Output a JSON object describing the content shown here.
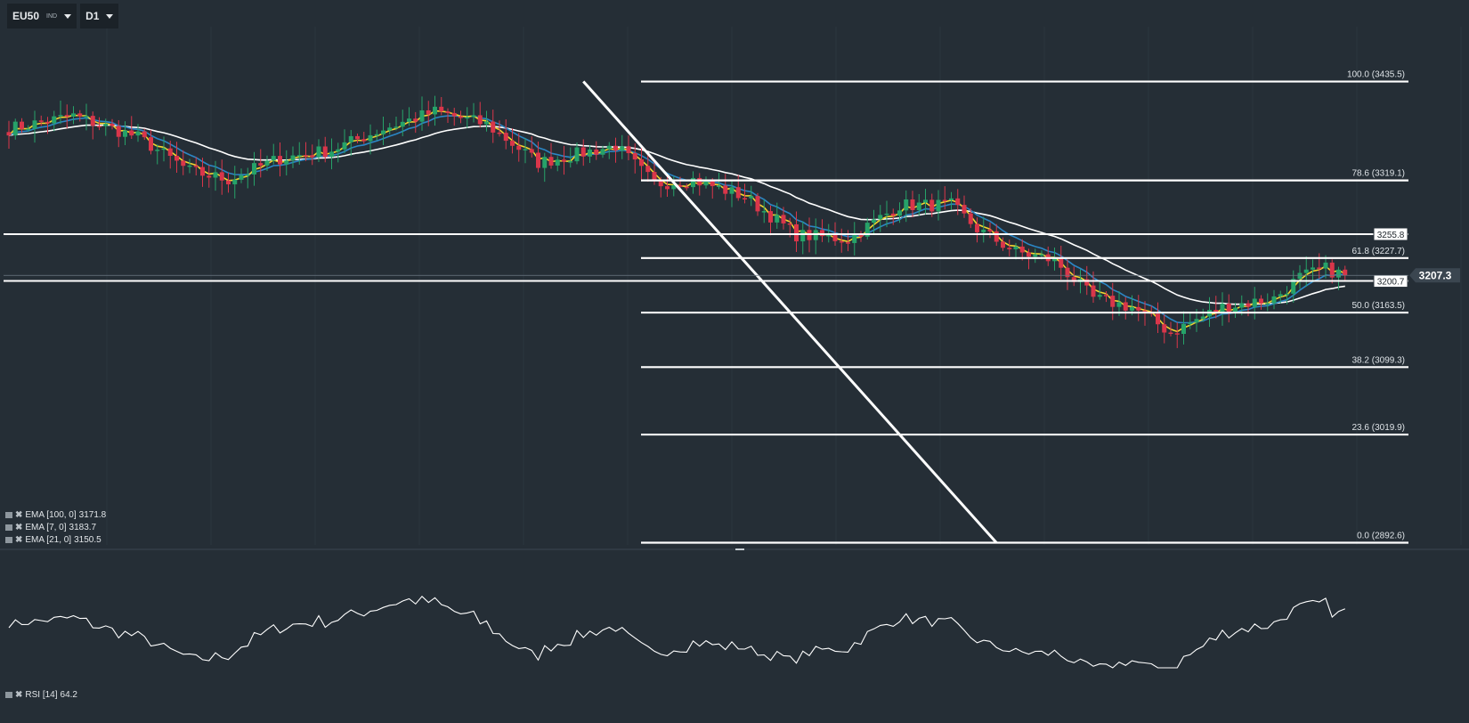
{
  "toolbar": {
    "symbol": "EU50",
    "symbol_sub": "IND",
    "timeframe": "D1"
  },
  "colors": {
    "background": "#252e36",
    "up": "#26a269",
    "down": "#d9364a",
    "ema100": "#ffffff",
    "ema7": "#f2d52e",
    "ema21": "#2b86c5",
    "fib": "#ffffff",
    "rsi": "#ffffff"
  },
  "price_tag": "3207.3",
  "indicators": [
    {
      "label": "EMA [100,  0]",
      "value": "3171.8"
    },
    {
      "label": "EMA [7,  0]",
      "value": "3183.7"
    },
    {
      "label": "EMA [21,  0]",
      "value": "3150.5"
    }
  ],
  "rsi": {
    "label": "RSI [14]",
    "value": "64.2"
  },
  "chart_data": {
    "type": "candlestick",
    "symbol": "EU50",
    "timeframe": "D1",
    "ylim": [
      2890,
      3500
    ],
    "current_price": 3207.3,
    "candle_count": 208,
    "close_path": [
      [
        0,
        3380
      ],
      [
        10,
        3395
      ],
      [
        20,
        3370
      ],
      [
        28,
        3330
      ],
      [
        34,
        3320
      ],
      [
        42,
        3345
      ],
      [
        50,
        3355
      ],
      [
        58,
        3380
      ],
      [
        66,
        3400
      ],
      [
        74,
        3385
      ],
      [
        82,
        3340
      ],
      [
        88,
        3350
      ],
      [
        94,
        3360
      ],
      [
        100,
        3315
      ],
      [
        106,
        3320
      ],
      [
        114,
        3300
      ],
      [
        122,
        3255
      ],
      [
        130,
        3250
      ],
      [
        138,
        3290
      ],
      [
        146,
        3290
      ],
      [
        150,
        3262
      ],
      [
        156,
        3235
      ],
      [
        162,
        3225
      ],
      [
        168,
        3180
      ],
      [
        174,
        3170
      ],
      [
        180,
        3140
      ],
      [
        188,
        3170
      ],
      [
        196,
        3180
      ],
      [
        200,
        3205
      ],
      [
        204,
        3215
      ],
      [
        207,
        3207.3
      ]
    ],
    "fibonacci": [
      {
        "label": "100.0 (3435.5)",
        "value": 3435.5
      },
      {
        "label": "78.6 (3319.1)",
        "value": 3319.1
      },
      {
        "label": "61.8 (3227.7)",
        "value": 3227.7
      },
      {
        "label": "50.0 (3163.5)",
        "value": 3163.5
      },
      {
        "label": "38.2 (3099.3)",
        "value": 3099.3
      },
      {
        "label": "23.6 (3019.9)",
        "value": 3019.9
      },
      {
        "label": "0.0 (2892.6)",
        "value": 2892.6
      }
    ],
    "horizontal_levels": [
      {
        "label": "3255.8",
        "value": 3255.8
      },
      {
        "label": "3200.7",
        "value": 3200.7
      }
    ],
    "trendline": [
      [
        89,
        3435.5
      ],
      [
        153,
        2892.6
      ]
    ],
    "ema": [
      {
        "period": 100,
        "value": 3171.8
      },
      {
        "period": 7,
        "value": 3183.7
      },
      {
        "period": 21,
        "value": 3150.5
      }
    ],
    "rsi": {
      "period": 14,
      "value": 64.2,
      "ylim": [
        20,
        80
      ]
    }
  }
}
